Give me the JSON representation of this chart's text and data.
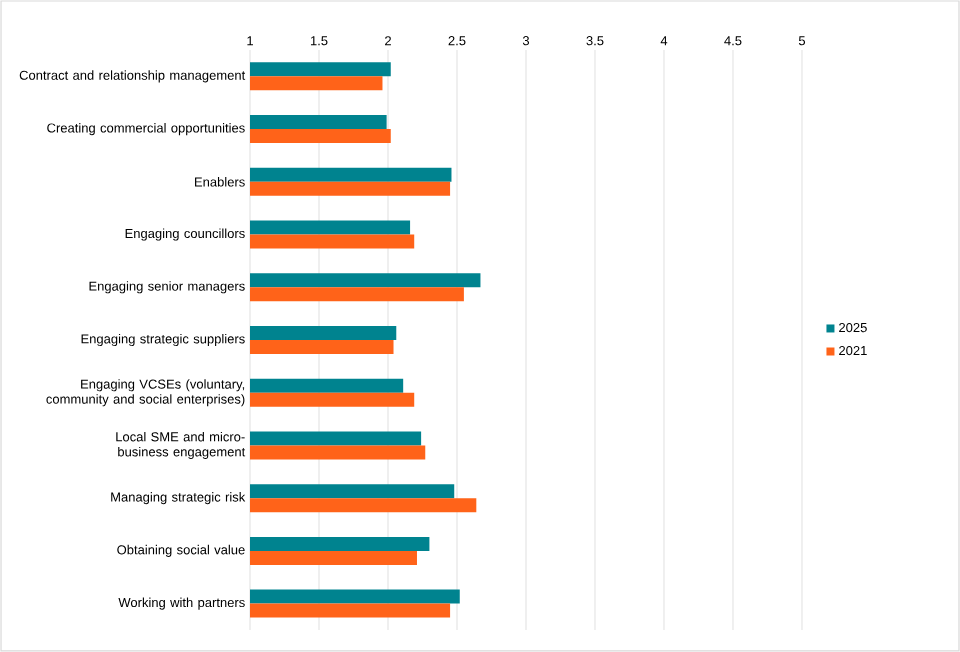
{
  "chart_data": {
    "type": "bar",
    "orientation": "horizontal",
    "categories": [
      "Contract and relationship management",
      "Creating commercial opportunities",
      "Enablers",
      "Engaging councillors",
      "Engaging senior managers",
      "Engaging strategic suppliers",
      "Engaging VCSEs (voluntary, community and social enterprises)",
      "Local SME and micro-business engagement",
      "Managing strategic risk",
      "Obtaining social value",
      "Working with partners"
    ],
    "series": [
      {
        "name": "2025",
        "color": "#00838f",
        "values": [
          2.02,
          1.99,
          2.46,
          2.16,
          2.67,
          2.06,
          2.11,
          2.24,
          2.48,
          2.3,
          2.52
        ]
      },
      {
        "name": "2021",
        "color": "#ff6319",
        "values": [
          1.96,
          2.02,
          2.45,
          2.19,
          2.55,
          2.04,
          2.19,
          2.27,
          2.64,
          2.21,
          2.45
        ]
      }
    ],
    "xlim": [
      1,
      5
    ],
    "xticks": [
      1,
      1.5,
      2,
      2.5,
      3,
      3.5,
      4,
      4.5,
      5
    ],
    "grid": "x",
    "legend": "right"
  }
}
